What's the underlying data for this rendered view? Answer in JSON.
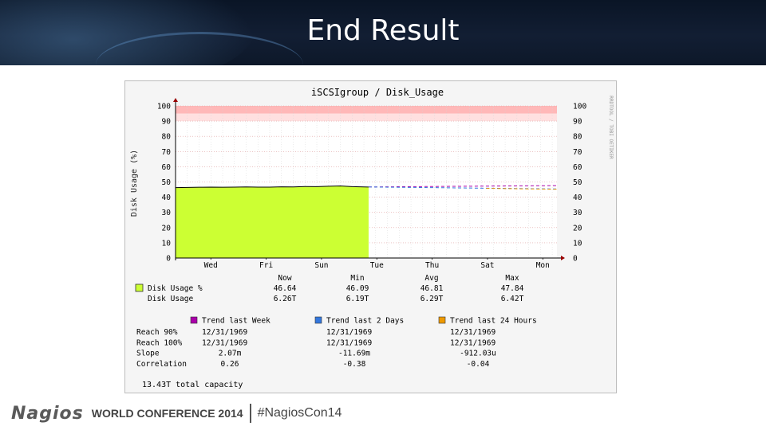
{
  "slide": {
    "title": "End Result"
  },
  "footer": {
    "logo_text": "Nagios",
    "conference": "WORLD CONFERENCE 2014",
    "hashtag": "#NagiosCon14"
  },
  "chart_data": {
    "type": "area",
    "title": "iSCSIgroup / Disk_Usage",
    "ylabel": "Disk Usage (%)",
    "watermark": "RRDTOOL / TOBI OETIKER",
    "ylim": [
      0,
      100
    ],
    "yticks": [
      0,
      10,
      20,
      30,
      40,
      50,
      60,
      70,
      80,
      90,
      100
    ],
    "x_tick_labels": [
      "Wed",
      "Fri",
      "Sun",
      "Tue",
      "Thu",
      "Sat",
      "Mon"
    ],
    "threshold_bands": [
      {
        "from": 90,
        "to": 95,
        "color": "#ffe0e0"
      },
      {
        "from": 95,
        "to": 100,
        "color": "#ffb8b8"
      }
    ],
    "series": [
      {
        "name": "Disk Usage %",
        "color": "#ccff33",
        "x": [
          0,
          0.5,
          1,
          1.5,
          2,
          2.5,
          3,
          3.5,
          4,
          4.5,
          5,
          5.5,
          6,
          6.5,
          7,
          7.5,
          8,
          8.2
        ],
        "values": [
          46.3,
          46.4,
          46.5,
          46.6,
          46.5,
          46.6,
          46.7,
          46.6,
          46.6,
          46.8,
          46.7,
          47.0,
          46.9,
          47.2,
          47.4,
          46.9,
          46.7,
          46.64
        ]
      }
    ],
    "trend_lines": [
      {
        "name": "Trend last Week",
        "color": "#aa00aa",
        "x": [
          8.2,
          16.2
        ],
        "values": [
          46.7,
          47.6
        ]
      },
      {
        "name": "Trend last 2 Days",
        "color": "#3377dd",
        "x": [
          8.2,
          16.2
        ],
        "values": [
          46.7,
          45.4
        ]
      },
      {
        "name": "Trend last 24 Hours",
        "color": "#ee9900",
        "x": [
          13.2,
          16.2
        ],
        "values": [
          45.8,
          45.2
        ]
      }
    ],
    "stats": {
      "headers": [
        "Now",
        "Min",
        "Avg",
        "Max"
      ],
      "rows": [
        {
          "label": "Disk Usage %",
          "values": [
            "46.64",
            "46.09",
            "46.81",
            "47.84"
          ]
        },
        {
          "label": "Disk Usage",
          "values": [
            "6.26T",
            "6.19T",
            "6.29T",
            "6.42T"
          ]
        }
      ]
    },
    "trends": {
      "headers": [
        "Trend last Week",
        "Trend last 2 Days",
        "Trend last 24 Hours"
      ],
      "rows": [
        {
          "label": "Reach 90%",
          "values": [
            "12/31/1969",
            "12/31/1969",
            "12/31/1969"
          ]
        },
        {
          "label": "Reach 100%",
          "values": [
            "12/31/1969",
            "12/31/1969",
            "12/31/1969"
          ]
        },
        {
          "label": "Slope",
          "values": [
            "2.07m",
            "-11.69m",
            "-912.03u"
          ]
        },
        {
          "label": "Correlation",
          "values": [
            "0.26",
            "-0.38",
            "-0.04"
          ]
        }
      ]
    },
    "capacity_note": "13.43T total capacity"
  }
}
